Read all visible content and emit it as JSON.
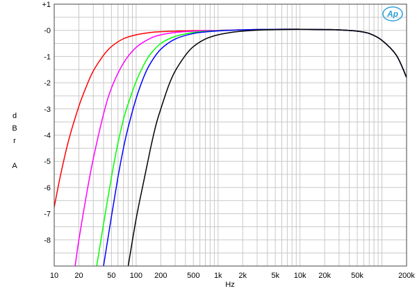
{
  "chart_data": {
    "type": "line",
    "xscale": "log",
    "xlim": [
      10,
      200000
    ],
    "ylim": [
      -9,
      1
    ],
    "grid": true,
    "xlabel": "Hz",
    "ylabel": [
      "d",
      "B",
      "r",
      "",
      "A"
    ],
    "x_ticks": [
      {
        "value": 10,
        "label": "10"
      },
      {
        "value": 20,
        "label": "20"
      },
      {
        "value": 50,
        "label": "50"
      },
      {
        "value": 100,
        "label": "100"
      },
      {
        "value": 200,
        "label": "200"
      },
      {
        "value": 500,
        "label": "500"
      },
      {
        "value": 1000,
        "label": "1k"
      },
      {
        "value": 2000,
        "label": "2k"
      },
      {
        "value": 5000,
        "label": "5k"
      },
      {
        "value": 10000,
        "label": "10k"
      },
      {
        "value": 20000,
        "label": "20k"
      },
      {
        "value": 50000,
        "label": "50k"
      },
      {
        "value": 200000,
        "label": "200k"
      }
    ],
    "y_ticks": [
      {
        "value": 1,
        "label": "+1"
      },
      {
        "value": 0,
        "label": "-0"
      },
      {
        "value": -1,
        "label": "-1"
      },
      {
        "value": -2,
        "label": "-2"
      },
      {
        "value": -3,
        "label": "-3"
      },
      {
        "value": -4,
        "label": "-4"
      },
      {
        "value": -5,
        "label": "-5"
      },
      {
        "value": -6,
        "label": "-6"
      },
      {
        "value": -7,
        "label": "-7"
      },
      {
        "value": -8,
        "label": "-8"
      }
    ],
    "series": [
      {
        "color": "#ff0000",
        "points": [
          [
            10,
            -6.75
          ],
          [
            12,
            -5.5
          ],
          [
            15,
            -4.2
          ],
          [
            20,
            -2.9
          ],
          [
            25,
            -2.1
          ],
          [
            30,
            -1.55
          ],
          [
            40,
            -0.95
          ],
          [
            50,
            -0.62
          ],
          [
            70,
            -0.32
          ],
          [
            100,
            -0.17
          ],
          [
            150,
            -0.08
          ],
          [
            200,
            -0.05
          ],
          [
            300,
            -0.03
          ],
          [
            500,
            -0.01
          ],
          [
            1000,
            0.0
          ],
          [
            2000,
            0.02
          ],
          [
            5000,
            0.04
          ],
          [
            10000,
            0.04
          ],
          [
            20000,
            0.03
          ],
          [
            30000,
            0.02
          ],
          [
            50000,
            -0.03
          ],
          [
            70000,
            -0.12
          ],
          [
            100000,
            -0.38
          ],
          [
            150000,
            -0.95
          ],
          [
            200000,
            -1.8
          ]
        ]
      },
      {
        "color": "#ff00ff",
        "points": [
          [
            18,
            -9.0
          ],
          [
            20,
            -8.0
          ],
          [
            25,
            -6.2
          ],
          [
            30,
            -4.9
          ],
          [
            40,
            -3.2
          ],
          [
            50,
            -2.2
          ],
          [
            70,
            -1.25
          ],
          [
            100,
            -0.65
          ],
          [
            150,
            -0.3
          ],
          [
            200,
            -0.17
          ],
          [
            300,
            -0.08
          ],
          [
            500,
            -0.03
          ],
          [
            1000,
            0.0
          ],
          [
            2000,
            0.02
          ],
          [
            5000,
            0.04
          ],
          [
            10000,
            0.04
          ],
          [
            20000,
            0.03
          ],
          [
            30000,
            0.02
          ],
          [
            50000,
            -0.03
          ],
          [
            70000,
            -0.12
          ],
          [
            100000,
            -0.38
          ],
          [
            150000,
            -0.95
          ],
          [
            200000,
            -1.8
          ]
        ]
      },
      {
        "color": "#00ff00",
        "points": [
          [
            33,
            -9.0
          ],
          [
            40,
            -7.4
          ],
          [
            50,
            -5.6
          ],
          [
            60,
            -4.3
          ],
          [
            70,
            -3.4
          ],
          [
            80,
            -2.8
          ],
          [
            100,
            -1.95
          ],
          [
            125,
            -1.3
          ],
          [
            150,
            -0.9
          ],
          [
            200,
            -0.5
          ],
          [
            300,
            -0.23
          ],
          [
            500,
            -0.08
          ],
          [
            700,
            -0.04
          ],
          [
            1000,
            -0.01
          ],
          [
            2000,
            0.02
          ],
          [
            5000,
            0.04
          ],
          [
            10000,
            0.04
          ],
          [
            20000,
            0.03
          ],
          [
            30000,
            0.02
          ],
          [
            50000,
            -0.03
          ],
          [
            70000,
            -0.12
          ],
          [
            100000,
            -0.38
          ],
          [
            150000,
            -0.95
          ],
          [
            200000,
            -1.8
          ]
        ]
      },
      {
        "color": "#0000ff",
        "points": [
          [
            40,
            -9.0
          ],
          [
            50,
            -7.1
          ],
          [
            60,
            -5.6
          ],
          [
            70,
            -4.5
          ],
          [
            80,
            -3.7
          ],
          [
            100,
            -2.6
          ],
          [
            125,
            -1.75
          ],
          [
            150,
            -1.25
          ],
          [
            200,
            -0.72
          ],
          [
            300,
            -0.33
          ],
          [
            500,
            -0.12
          ],
          [
            700,
            -0.06
          ],
          [
            1000,
            -0.02
          ],
          [
            2000,
            0.02
          ],
          [
            5000,
            0.04
          ],
          [
            10000,
            0.04
          ],
          [
            20000,
            0.03
          ],
          [
            30000,
            0.02
          ],
          [
            50000,
            -0.03
          ],
          [
            70000,
            -0.12
          ],
          [
            100000,
            -0.38
          ],
          [
            150000,
            -0.95
          ],
          [
            200000,
            -1.8
          ]
        ]
      },
      {
        "color": "#000000",
        "points": [
          [
            80,
            -9.0
          ],
          [
            100,
            -7.2
          ],
          [
            125,
            -5.7
          ],
          [
            150,
            -4.5
          ],
          [
            175,
            -3.6
          ],
          [
            200,
            -3.0
          ],
          [
            250,
            -2.1
          ],
          [
            300,
            -1.55
          ],
          [
            400,
            -0.95
          ],
          [
            500,
            -0.62
          ],
          [
            700,
            -0.33
          ],
          [
            1000,
            -0.17
          ],
          [
            1500,
            -0.07
          ],
          [
            2000,
            -0.03
          ],
          [
            3000,
            0.01
          ],
          [
            5000,
            0.03
          ],
          [
            10000,
            0.04
          ],
          [
            20000,
            0.03
          ],
          [
            30000,
            0.02
          ],
          [
            50000,
            -0.03
          ],
          [
            70000,
            -0.12
          ],
          [
            100000,
            -0.38
          ],
          [
            150000,
            -0.95
          ],
          [
            200000,
            -1.8
          ]
        ]
      }
    ]
  },
  "logo": {
    "text": "Ap",
    "color": "#2aa0d8"
  }
}
